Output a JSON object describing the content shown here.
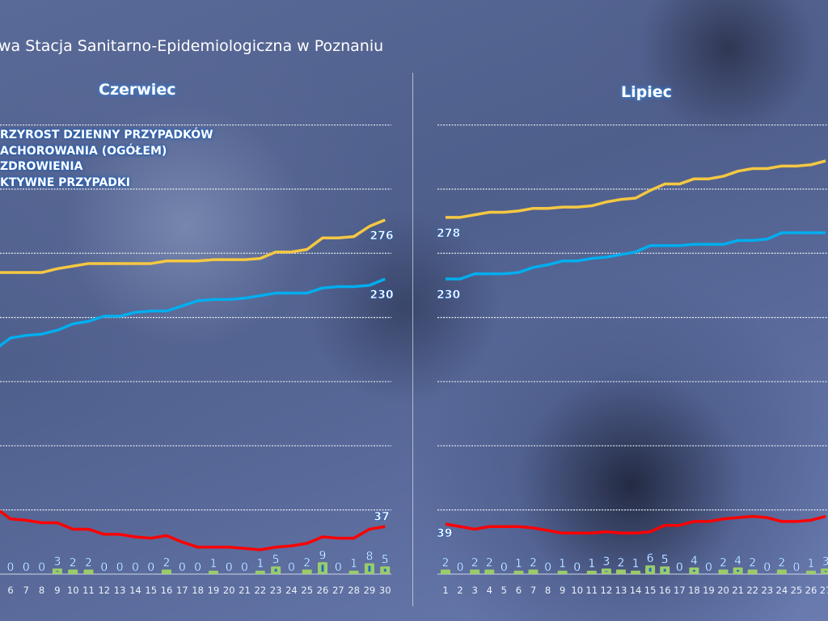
{
  "title": "wa Stacja Sanitarno-Epidemiologiczna w Poznaniu",
  "legend": [
    "RZYROST DZIENNY PRZYPADKÓW",
    "ACHOROWANIA (OGÓŁEM)",
    "ZDROWIENIA",
    "KTYWNE PRZYPADKI"
  ],
  "colors": {
    "cases": "#f5c842",
    "recoveries": "#00aeef",
    "active": "#ff0000",
    "daily": "#9ccc6a",
    "daily_inner": "#1f6fc0"
  },
  "chart_data": [
    {
      "type": "line",
      "title": "Czerwiec",
      "ylim": [
        0,
        400
      ],
      "grid": true,
      "x": [
        6,
        7,
        8,
        9,
        10,
        11,
        12,
        13,
        14,
        15,
        16,
        17,
        18,
        19,
        20,
        21,
        22,
        23,
        24,
        25,
        26,
        27,
        28,
        29,
        30
      ],
      "series": [
        {
          "name": "Zachorowania (ogółem)",
          "values": [
            235,
            235,
            235,
            238,
            240,
            242,
            242,
            242,
            242,
            242,
            244,
            244,
            244,
            245,
            245,
            245,
            246,
            251,
            251,
            253,
            262,
            262,
            263,
            271,
            276
          ],
          "end_label": "276"
        },
        {
          "name": "Ozdrowienia",
          "values": [
            184,
            186,
            187,
            190,
            195,
            197,
            201,
            201,
            204,
            205,
            205,
            209,
            213,
            214,
            214,
            215,
            217,
            219,
            219,
            219,
            223,
            224,
            224,
            225,
            230
          ],
          "end_label": "230"
        },
        {
          "name": "Aktywne przypadki",
          "values": [
            43,
            42,
            40,
            40,
            35,
            35,
            31,
            31,
            29,
            28,
            30,
            25,
            21,
            21,
            21,
            20,
            19,
            21,
            22,
            24,
            29,
            28,
            28,
            35,
            37
          ],
          "end_label": "37"
        },
        {
          "name": "Przyrost dzienny przypadków",
          "type": "bar",
          "values": [
            0,
            0,
            0,
            3,
            2,
            2,
            0,
            0,
            0,
            0,
            2,
            0,
            0,
            1,
            0,
            0,
            1,
            5,
            0,
            2,
            9,
            0,
            1,
            8,
            5
          ]
        }
      ]
    },
    {
      "type": "line",
      "title": "Lipiec",
      "ylim": [
        0,
        400
      ],
      "grid": true,
      "x": [
        1,
        2,
        3,
        4,
        5,
        6,
        7,
        8,
        9,
        10,
        11,
        12,
        13,
        14,
        15,
        16,
        17,
        18,
        19,
        20,
        21,
        22,
        23,
        24,
        25,
        26,
        27
      ],
      "series": [
        {
          "name": "Zachorowania (ogółem)",
          "values": [
            278,
            278,
            280,
            282,
            282,
            283,
            285,
            285,
            286,
            286,
            287,
            290,
            292,
            293,
            299,
            304,
            304,
            308,
            308,
            310,
            314,
            316,
            316,
            318,
            318,
            319,
            322
          ],
          "start_label": "278"
        },
        {
          "name": "Ozdrowienia",
          "values": [
            230,
            230,
            234,
            234,
            234,
            235,
            239,
            241,
            244,
            244,
            246,
            247,
            249,
            251,
            256,
            256,
            256,
            257,
            257,
            257,
            260,
            260,
            261,
            266,
            266,
            266,
            266
          ],
          "start_label": "230"
        },
        {
          "name": "Aktywne przypadki",
          "values": [
            39,
            37,
            35,
            37,
            37,
            37,
            36,
            34,
            32,
            32,
            32,
            33,
            32,
            32,
            33,
            38,
            38,
            41,
            41,
            43,
            44,
            45,
            44,
            41,
            41,
            42,
            45
          ],
          "start_label": "39"
        },
        {
          "name": "Przyrost dzienny przypadków",
          "type": "bar",
          "values": [
            2,
            0,
            2,
            2,
            0,
            1,
            2,
            0,
            1,
            0,
            1,
            3,
            2,
            1,
            6,
            5,
            0,
            4,
            0,
            2,
            4,
            2,
            0,
            2,
            0,
            1,
            3
          ]
        }
      ]
    }
  ]
}
